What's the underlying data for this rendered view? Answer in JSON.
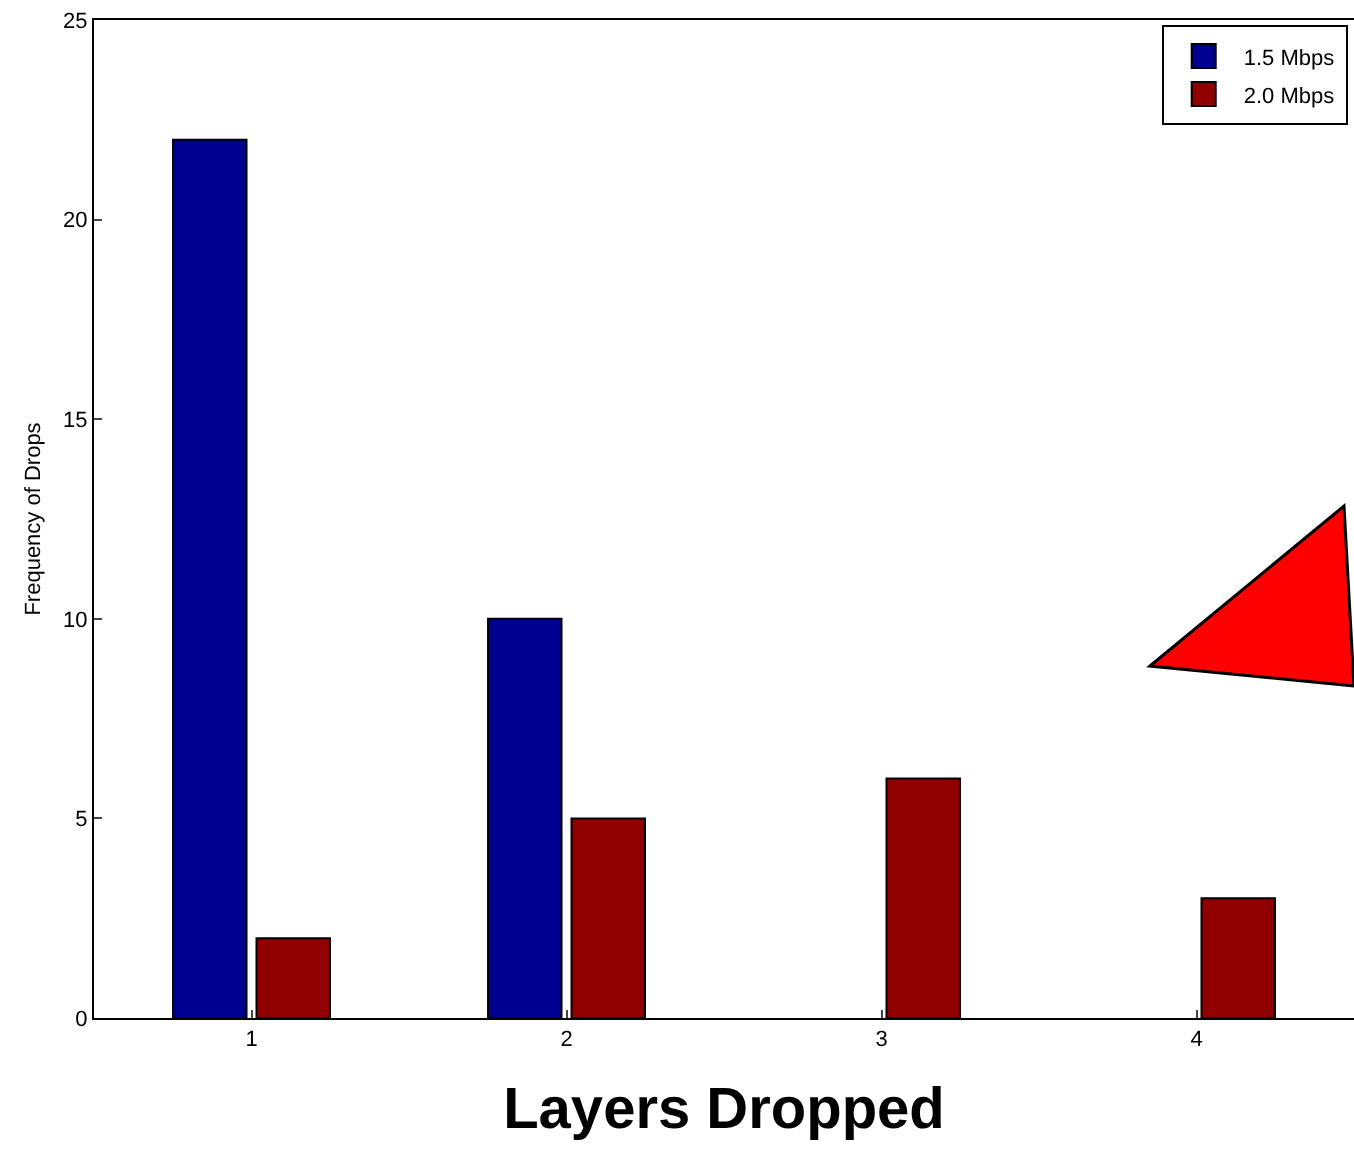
{
  "chart_data": {
    "type": "bar",
    "xlabel": "Layers Dropped",
    "ylabel": "Frequency of Drops",
    "categories": [
      "1",
      "2",
      "3",
      "4"
    ],
    "series": [
      {
        "name": "1.5 Mbps",
        "color": "#000090",
        "values": [
          22,
          10,
          null,
          null
        ]
      },
      {
        "name": "2.0 Mbps",
        "color": "#900000",
        "values": [
          2,
          5,
          6,
          3
        ]
      }
    ],
    "ylim": [
      0,
      25
    ],
    "yticks": [
      0,
      5,
      10,
      15,
      20,
      25
    ],
    "grid": false,
    "legend": "top right"
  }
}
